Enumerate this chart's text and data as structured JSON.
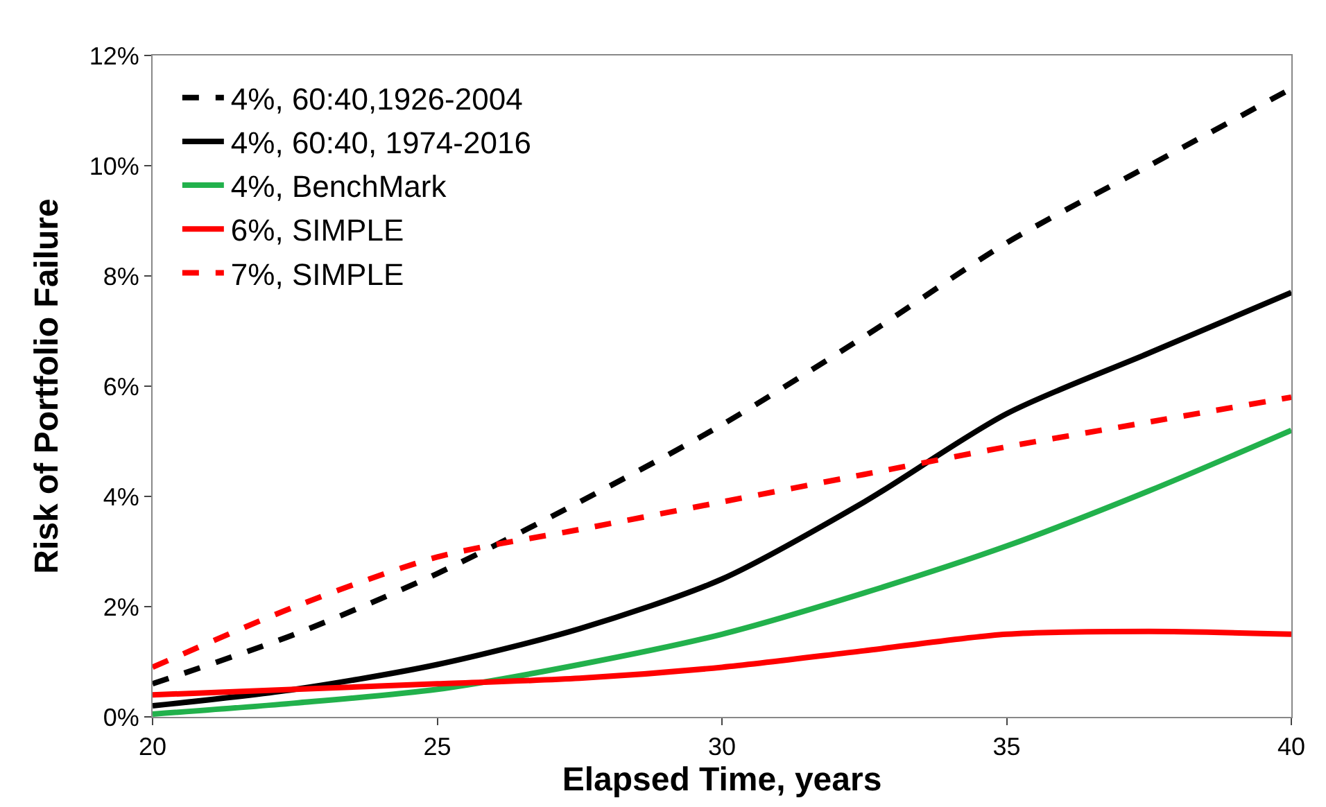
{
  "chart_data": {
    "type": "line",
    "xlabel": "Elapsed Time, years",
    "ylabel": "Risk of Portfolio Failure",
    "x": [
      20,
      22.5,
      25,
      27.5,
      30,
      32.5,
      35,
      37.5,
      40
    ],
    "series": [
      {
        "name": "4%, 60:40,1926-2004",
        "color": "#000000",
        "line_style": "dashed",
        "values": [
          0.6,
          1.5,
          2.6,
          3.9,
          5.3,
          6.9,
          8.6,
          10.0,
          11.4
        ]
      },
      {
        "name": "4%, 60:40, 1974-2016",
        "color": "#000000",
        "line_style": "solid",
        "values": [
          0.2,
          0.5,
          0.95,
          1.6,
          2.5,
          3.9,
          5.5,
          6.6,
          7.7
        ]
      },
      {
        "name": "4%, BenchMark",
        "color": "#22b14c",
        "line_style": "solid",
        "values": [
          0.05,
          0.25,
          0.5,
          0.95,
          1.5,
          2.25,
          3.1,
          4.1,
          5.2
        ]
      },
      {
        "name": "6%, SIMPLE",
        "color": "#ff0000",
        "line_style": "solid",
        "values": [
          0.4,
          0.5,
          0.6,
          0.7,
          0.9,
          1.2,
          1.5,
          1.55,
          1.5
        ]
      },
      {
        "name": "7%, SIMPLE",
        "color": "#ff0000",
        "line_style": "dashed",
        "values": [
          0.9,
          2.0,
          2.9,
          3.4,
          3.9,
          4.4,
          4.9,
          5.35,
          5.8
        ]
      }
    ],
    "xlim": [
      20,
      40
    ],
    "xticks": [
      20,
      25,
      30,
      35,
      40
    ],
    "ylim": [
      0,
      12
    ],
    "yticks": [
      {
        "value": 0,
        "label": "0%"
      },
      {
        "value": 2,
        "label": "2%"
      },
      {
        "value": 4,
        "label": "4%"
      },
      {
        "value": 6,
        "label": "6%"
      },
      {
        "value": 8,
        "label": "8%"
      },
      {
        "value": 10,
        "label": "10%"
      },
      {
        "value": 12,
        "label": "12%"
      }
    ],
    "legend": "top left",
    "marker": "none"
  }
}
